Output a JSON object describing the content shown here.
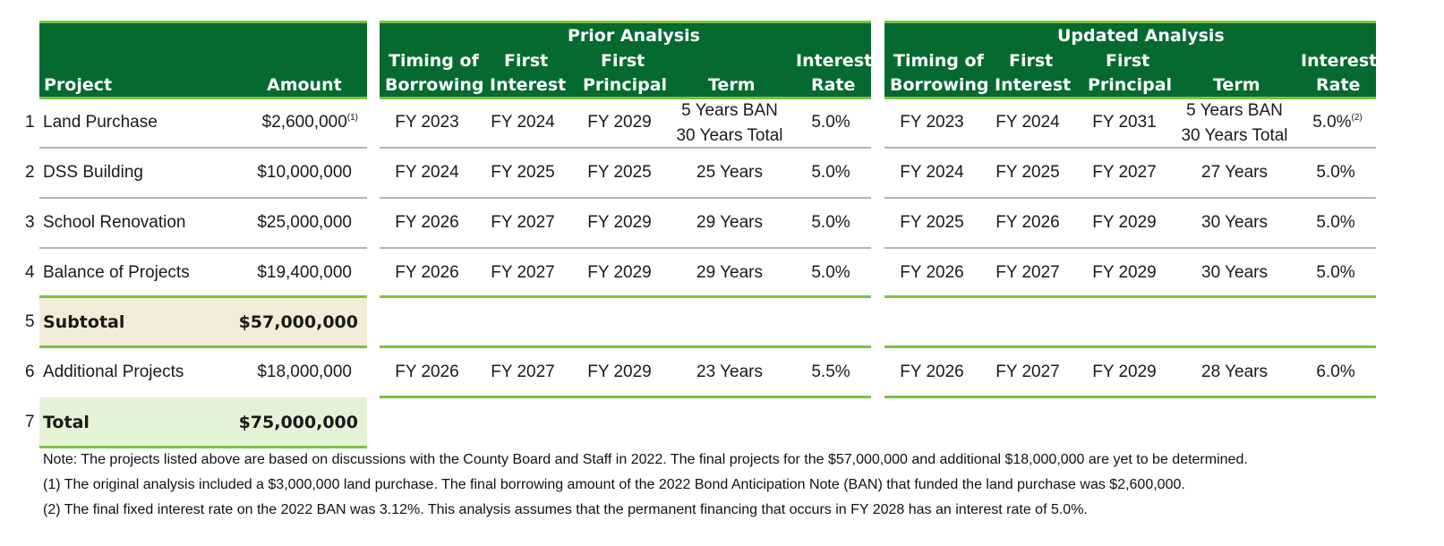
{
  "header": {
    "prior_title": "Prior Analysis",
    "updated_title": "Updated Analysis",
    "col_project": "Project",
    "col_amount": "Amount",
    "col_timing_1": "Timing of",
    "col_timing_2": "Borrowing",
    "col_first_interest_1": "First",
    "col_first_interest_2": "Interest",
    "col_first_principal_1": "First",
    "col_first_principal_2": "Principal",
    "col_term": "Term",
    "col_rate_1": "Interest",
    "col_rate_2": "Rate"
  },
  "rows": [
    {
      "num": "1",
      "project": "Land Purchase",
      "amount": "$2,600,000",
      "amount_sup": "(1)",
      "prior": {
        "timing": "FY 2023",
        "first_interest": "FY 2024",
        "first_principal": "FY 2029",
        "term_1": "5 Years BAN",
        "term_2": "30 Years Total",
        "rate": "5.0%"
      },
      "updated": {
        "timing": "FY 2023",
        "first_interest": "FY 2024",
        "first_principal": "FY 2031",
        "term_1": "5 Years BAN",
        "term_2": "30 Years Total",
        "rate": "5.0%",
        "rate_sup": "(2)"
      }
    },
    {
      "num": "2",
      "project": "DSS Building",
      "amount": "$10,000,000",
      "prior": {
        "timing": "FY 2024",
        "first_interest": "FY 2025",
        "first_principal": "FY 2025",
        "term": "25 Years",
        "rate": "5.0%"
      },
      "updated": {
        "timing": "FY 2024",
        "first_interest": "FY 2025",
        "first_principal": "FY 2027",
        "term": "27 Years",
        "rate": "5.0%"
      }
    },
    {
      "num": "3",
      "project": "School Renovation",
      "amount": "$25,000,000",
      "prior": {
        "timing": "FY 2026",
        "first_interest": "FY 2027",
        "first_principal": "FY 2029",
        "term": "29 Years",
        "rate": "5.0%"
      },
      "updated": {
        "timing": "FY 2025",
        "first_interest": "FY 2026",
        "first_principal": "FY 2029",
        "term": "30 Years",
        "rate": "5.0%"
      }
    },
    {
      "num": "4",
      "project": "Balance of Projects",
      "amount": "$19,400,000",
      "prior": {
        "timing": "FY 2026",
        "first_interest": "FY 2027",
        "first_principal": "FY 2029",
        "term": "29 Years",
        "rate": "5.0%"
      },
      "updated": {
        "timing": "FY 2026",
        "first_interest": "FY 2027",
        "first_principal": "FY 2029",
        "term": "30 Years",
        "rate": "5.0%"
      }
    },
    {
      "num": "5",
      "project": "Subtotal",
      "amount": "$57,000,000"
    },
    {
      "num": "6",
      "project": "Additional Projects",
      "amount": "$18,000,000",
      "prior": {
        "timing": "FY 2026",
        "first_interest": "FY 2027",
        "first_principal": "FY 2029",
        "term": "23 Years",
        "rate": "5.5%"
      },
      "updated": {
        "timing": "FY 2026",
        "first_interest": "FY 2027",
        "first_principal": "FY 2029",
        "term": "28 Years",
        "rate": "6.0%"
      }
    },
    {
      "num": "7",
      "project": "Total",
      "amount": "$75,000,000"
    }
  ],
  "notes": [
    "Note: The projects listed above are based on discussions with the County Board and Staff in 2022. The final projects for the $57,000,000 and additional $18,000,000 are yet to be determined.",
    "(1) The original analysis included a $3,000,000 land purchase. The final borrowing amount of the 2022 Bond Anticipation Note (BAN) that funded the land purchase was $2,600,000.",
    "(2) The final fixed interest rate on the 2022 BAN was 3.12%. This analysis assumes that the permanent financing that occurs in FY 2028 has an interest rate of 5.0%."
  ],
  "colors": {
    "header_green": "#046a2f",
    "accent_lime": "#7cc242",
    "subtotal_fill": "#f3ecd9",
    "total_fill": "#e6f2d8"
  }
}
